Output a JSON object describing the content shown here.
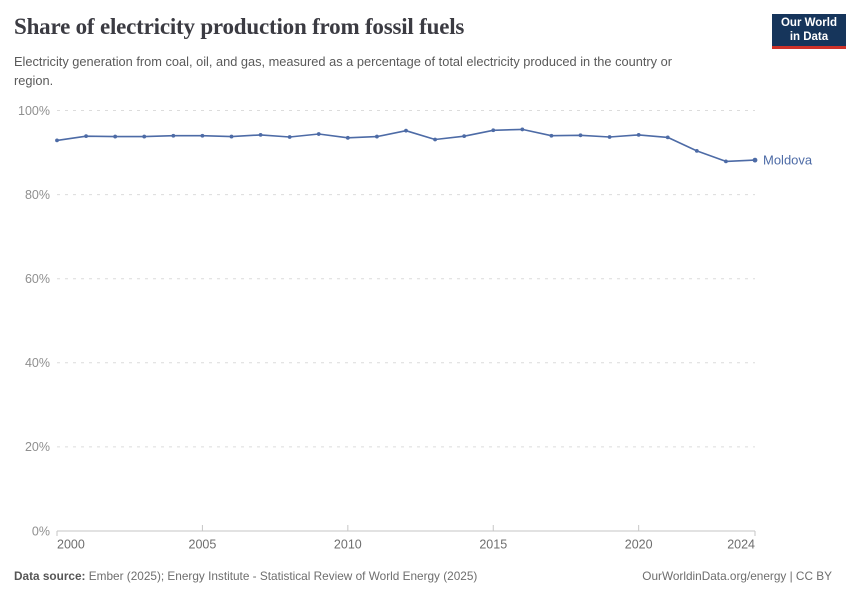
{
  "header": {
    "title": "Share of electricity production from fossil fuels",
    "subtitle": "Electricity generation from coal, oil, and gas, measured as a percentage of total electricity produced in the country or region.",
    "logo": {
      "line1": "Our World",
      "line2": "in Data",
      "bg_color": "#16355b",
      "accent_color": "#cf3229"
    }
  },
  "footer": {
    "source_label": "Data source:",
    "source_text": " Ember (2025); Energy Institute - Statistical Review of World Energy (2025)",
    "right_text": "OurWorldinData.org/energy | CC BY"
  },
  "chart_data": {
    "type": "line",
    "title": "Share of electricity production from fossil fuels",
    "xlabel": "",
    "ylabel": "",
    "xlim": [
      2000,
      2024
    ],
    "ylim": [
      0,
      100
    ],
    "grid": "horizontal-dashed",
    "legend_position": "end-of-line",
    "x_ticks": [
      2000,
      2005,
      2010,
      2015,
      2020,
      2024
    ],
    "x_tick_labels": [
      "2000",
      "2005",
      "2010",
      "2015",
      "2020",
      "2024"
    ],
    "y_ticks": [
      0,
      20,
      40,
      60,
      80,
      100
    ],
    "y_tick_labels": [
      "0%",
      "20%",
      "40%",
      "60%",
      "80%",
      "100%"
    ],
    "x": [
      2000,
      2001,
      2002,
      2003,
      2004,
      2005,
      2006,
      2007,
      2008,
      2009,
      2010,
      2011,
      2012,
      2013,
      2014,
      2015,
      2016,
      2017,
      2018,
      2019,
      2020,
      2021,
      2022,
      2023,
      2024
    ],
    "series": [
      {
        "name": "Moldova",
        "color": "#4d6ba6",
        "values": [
          92.9,
          93.9,
          93.8,
          93.8,
          94.0,
          94.0,
          93.8,
          94.2,
          93.7,
          94.4,
          93.5,
          93.8,
          95.2,
          93.1,
          93.9,
          95.3,
          95.5,
          94.0,
          94.1,
          93.7,
          94.2,
          93.6,
          90.4,
          87.9,
          88.2
        ]
      }
    ],
    "colors": {
      "grid_line": "#dcdcdc",
      "axis_line": "#c6c6c6",
      "y_tick_text": "#8f8f8f",
      "x_tick_text": "#6e6e6e"
    }
  }
}
